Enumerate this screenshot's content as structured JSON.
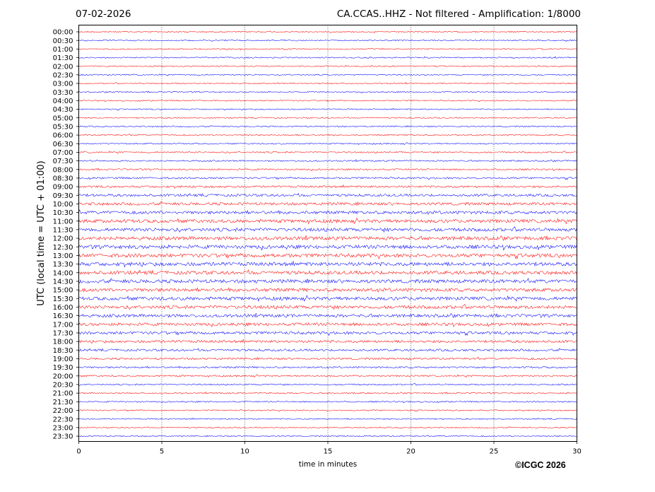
{
  "header": {
    "date": "07-02-2026",
    "station_title": "CA.CCAS..HHZ - Not filtered - Amplification: 1/8000"
  },
  "footer": {
    "copyright": "©ICGC 2026"
  },
  "colors": {
    "trace_a": "#ff0000",
    "trace_b": "#0000ff",
    "axis": "#000000"
  },
  "chart_data": {
    "type": "line",
    "title": "CA.CCAS..HHZ - Not filtered - Amplification: 1/8000",
    "xlabel": "time in minutes",
    "ylabel": "UTC (local time = UTC + 01:00)",
    "xlim": [
      0,
      30
    ],
    "xticks": [
      "0",
      "5",
      "10",
      "15",
      "20",
      "25",
      "30"
    ],
    "x_gridlines": [
      5,
      10,
      15,
      20,
      25
    ],
    "trace_colors": [
      "#ff0000",
      "#0000ff"
    ],
    "rows": [
      {
        "label": "00:00",
        "amplitude": 0.8
      },
      {
        "label": "00:30",
        "amplitude": 0.8
      },
      {
        "label": "01:00",
        "amplitude": 0.8
      },
      {
        "label": "01:30",
        "amplitude": 0.8
      },
      {
        "label": "02:00",
        "amplitude": 0.8
      },
      {
        "label": "02:30",
        "amplitude": 0.8
      },
      {
        "label": "03:00",
        "amplitude": 0.8
      },
      {
        "label": "03:30",
        "amplitude": 0.8
      },
      {
        "label": "04:00",
        "amplitude": 0.8
      },
      {
        "label": "04:30",
        "amplitude": 0.8
      },
      {
        "label": "05:00",
        "amplitude": 0.8
      },
      {
        "label": "05:30",
        "amplitude": 0.9
      },
      {
        "label": "06:00",
        "amplitude": 0.9
      },
      {
        "label": "06:30",
        "amplitude": 0.9
      },
      {
        "label": "07:00",
        "amplitude": 1.0
      },
      {
        "label": "07:30",
        "amplitude": 1.0
      },
      {
        "label": "08:00",
        "amplitude": 1.1
      },
      {
        "label": "08:30",
        "amplitude": 1.2
      },
      {
        "label": "09:00",
        "amplitude": 1.4
      },
      {
        "label": "09:30",
        "amplitude": 1.7
      },
      {
        "label": "10:00",
        "amplitude": 1.9
      },
      {
        "label": "10:30",
        "amplitude": 2.1
      },
      {
        "label": "11:00",
        "amplitude": 2.3
      },
      {
        "label": "11:30",
        "amplitude": 2.3
      },
      {
        "label": "12:00",
        "amplitude": 2.4
      },
      {
        "label": "12:30",
        "amplitude": 2.5
      },
      {
        "label": "13:00",
        "amplitude": 2.5
      },
      {
        "label": "13:30",
        "amplitude": 2.5
      },
      {
        "label": "14:00",
        "amplitude": 2.4
      },
      {
        "label": "14:30",
        "amplitude": 2.4
      },
      {
        "label": "15:00",
        "amplitude": 2.3
      },
      {
        "label": "15:30",
        "amplitude": 2.3
      },
      {
        "label": "16:00",
        "amplitude": 2.2
      },
      {
        "label": "16:30",
        "amplitude": 2.1
      },
      {
        "label": "17:00",
        "amplitude": 2.0
      },
      {
        "label": "17:30",
        "amplitude": 1.9
      },
      {
        "label": "18:00",
        "amplitude": 1.7
      },
      {
        "label": "18:30",
        "amplitude": 1.5
      },
      {
        "label": "19:00",
        "amplitude": 1.3
      },
      {
        "label": "19:30",
        "amplitude": 1.2
      },
      {
        "label": "20:00",
        "amplitude": 1.1
      },
      {
        "label": "20:30",
        "amplitude": 1.0
      },
      {
        "label": "21:00",
        "amplitude": 0.9
      },
      {
        "label": "21:30",
        "amplitude": 0.9
      },
      {
        "label": "22:00",
        "amplitude": 0.8
      },
      {
        "label": "22:30",
        "amplitude": 0.8
      },
      {
        "label": "23:00",
        "amplitude": 0.8
      },
      {
        "label": "23:30",
        "amplitude": 0.8
      }
    ]
  }
}
